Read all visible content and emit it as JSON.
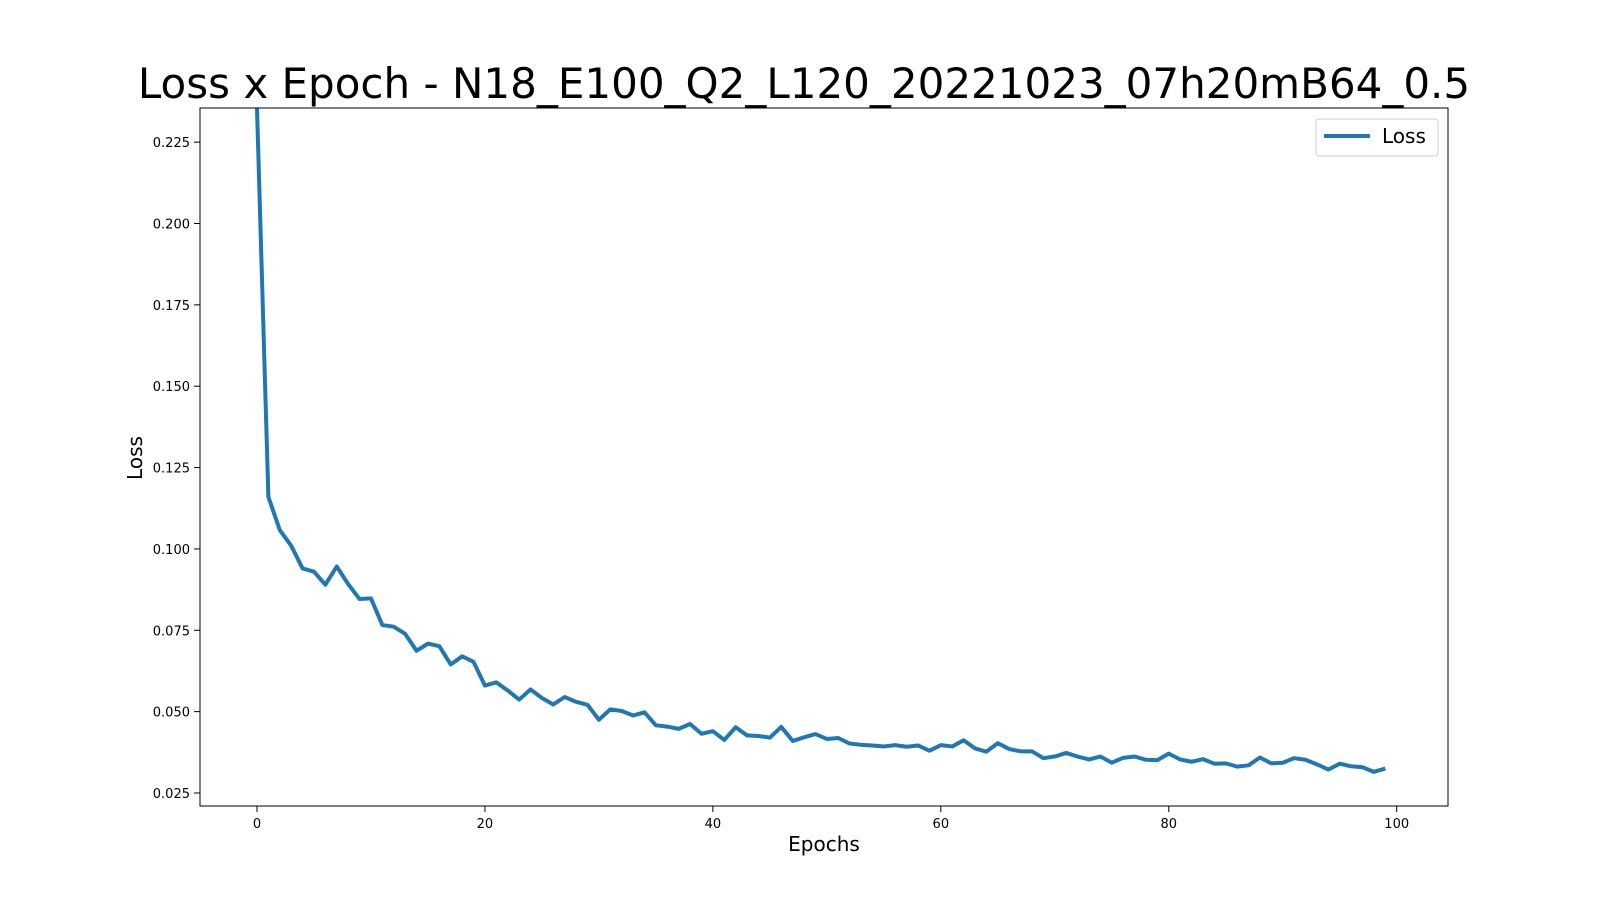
{
  "chart_data": {
    "type": "line",
    "title": "Loss x Epoch - N18_E100_Q2_L120_20221023_07h20mB64_0.5",
    "xlabel": "Epochs",
    "ylabel": "Loss",
    "xlim": [
      -5,
      104.5
    ],
    "ylim": [
      0.021,
      0.2355
    ],
    "xticks": [
      0,
      20,
      40,
      60,
      80,
      100
    ],
    "yticks": [
      0.025,
      0.05,
      0.075,
      0.1,
      0.125,
      0.15,
      0.175,
      0.2,
      0.225
    ],
    "xtick_labels": [
      "0",
      "20",
      "40",
      "60",
      "80",
      "100"
    ],
    "ytick_labels": [
      "0.025",
      "0.050",
      "0.075",
      "0.100",
      "0.125",
      "0.150",
      "0.175",
      "0.200",
      "0.225"
    ],
    "grid": false,
    "legend_position": "top-right",
    "color": "#1f77b4",
    "series": [
      {
        "name": "Loss",
        "x": [
          0,
          1,
          2,
          3,
          4,
          5,
          6,
          7,
          8,
          9,
          10,
          11,
          12,
          13,
          14,
          15,
          16,
          17,
          18,
          19,
          20,
          21,
          22,
          23,
          24,
          25,
          26,
          27,
          28,
          29,
          30,
          31,
          32,
          33,
          34,
          35,
          36,
          37,
          38,
          39,
          40,
          41,
          42,
          43,
          44,
          45,
          46,
          47,
          48,
          49,
          50,
          51,
          52,
          53,
          54,
          55,
          56,
          57,
          58,
          59,
          60,
          61,
          62,
          63,
          64,
          65,
          66,
          67,
          68,
          69,
          70,
          71,
          72,
          73,
          74,
          75,
          76,
          77,
          78,
          79,
          80,
          81,
          82,
          83,
          84,
          85,
          86,
          87,
          88,
          89,
          90,
          91,
          92,
          93,
          94,
          95,
          96,
          97,
          98,
          99
        ],
        "values": [
          0.2355,
          0.116,
          0.1058,
          0.101,
          0.094,
          0.093,
          0.089,
          0.0946,
          0.0892,
          0.0846,
          0.0848,
          0.0766,
          0.0761,
          0.0739,
          0.0687,
          0.0709,
          0.0701,
          0.0645,
          0.067,
          0.0653,
          0.058,
          0.059,
          0.0565,
          0.0537,
          0.0568,
          0.0542,
          0.0522,
          0.0545,
          0.053,
          0.0521,
          0.0475,
          0.0507,
          0.0502,
          0.0488,
          0.0498,
          0.0458,
          0.0454,
          0.0447,
          0.0462,
          0.0432,
          0.044,
          0.0413,
          0.0452,
          0.0427,
          0.0425,
          0.042,
          0.0453,
          0.041,
          0.0421,
          0.0431,
          0.0416,
          0.0419,
          0.0402,
          0.0398,
          0.0396,
          0.0393,
          0.0397,
          0.0392,
          0.0396,
          0.038,
          0.0397,
          0.0393,
          0.0412,
          0.0387,
          0.0377,
          0.0403,
          0.0385,
          0.0378,
          0.0378,
          0.0357,
          0.0362,
          0.0373,
          0.0362,
          0.0353,
          0.0362,
          0.0343,
          0.0358,
          0.0362,
          0.0352,
          0.0351,
          0.0371,
          0.0353,
          0.0346,
          0.0354,
          0.034,
          0.0341,
          0.0331,
          0.0335,
          0.0359,
          0.0341,
          0.0343,
          0.0357,
          0.0352,
          0.0338,
          0.0322,
          0.034,
          0.0332,
          0.0329,
          0.0315,
          0.0325
        ]
      }
    ]
  }
}
